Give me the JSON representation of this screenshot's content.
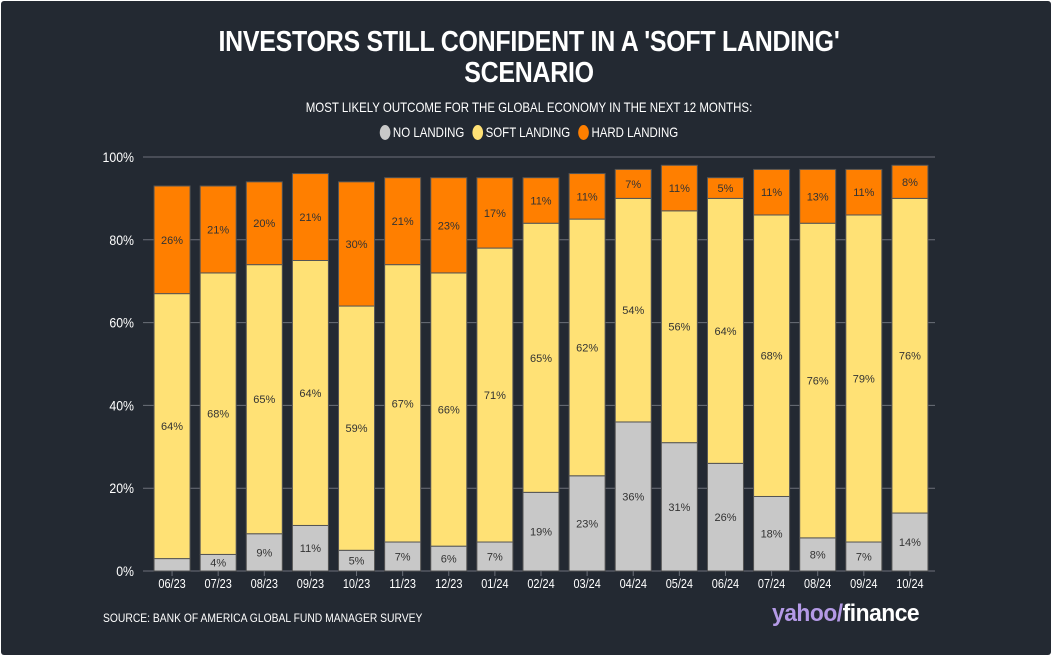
{
  "title_line1": "INVESTORS STILL CONFIDENT IN A 'SOFT LANDING'",
  "title_line2": "SCENARIO",
  "subtitle": "MOST LIKELY OUTCOME FOR THE GLOBAL ECONOMY IN THE NEXT 12 MONTHS:",
  "source": "SOURCE: BANK OF AMERICA GLOBAL FUND MANAGER SURVEY",
  "logo": {
    "part1": "yahoo",
    "part2": "/",
    "part3": "finance"
  },
  "colors": {
    "no_landing": "#c8c8c8",
    "soft_landing": "#ffe175",
    "hard_landing": "#ff7f00",
    "background": "#232932"
  },
  "chart_data": {
    "type": "bar",
    "stacked": true,
    "title": "INVESTORS STILL CONFIDENT IN A 'SOFT LANDING' SCENARIO",
    "subtitle": "MOST LIKELY OUTCOME FOR THE GLOBAL ECONOMY IN THE NEXT 12 MONTHS:",
    "xlabel": "",
    "ylabel": "",
    "ylim": [
      0,
      100
    ],
    "yticks": [
      "0%",
      "20%",
      "40%",
      "60%",
      "80%",
      "100%"
    ],
    "ytick_values": [
      0,
      20,
      40,
      60,
      80,
      100
    ],
    "grid": true,
    "legend": "top-center",
    "categories": [
      "06/23",
      "07/23",
      "08/23",
      "09/23",
      "10/23",
      "11/23",
      "12/23",
      "01/24",
      "02/24",
      "03/24",
      "04/24",
      "05/24",
      "06/24",
      "07/24",
      "08/24",
      "09/24",
      "10/24"
    ],
    "series": [
      {
        "name": "NO LANDING",
        "color": "#c8c8c8",
        "values": [
          3,
          4,
          9,
          11,
          5,
          7,
          6,
          7,
          19,
          23,
          36,
          31,
          26,
          18,
          8,
          7,
          14
        ],
        "labels": [
          "",
          "4%",
          "9%",
          "11%",
          "5%",
          "7%",
          "6%",
          "7%",
          "19%",
          "23%",
          "36%",
          "31%",
          "26%",
          "18%",
          "8%",
          "7%",
          "14%"
        ]
      },
      {
        "name": "SOFT LANDING",
        "color": "#ffe175",
        "values": [
          64,
          68,
          65,
          64,
          59,
          67,
          66,
          71,
          65,
          62,
          54,
          56,
          64,
          68,
          76,
          79,
          76
        ],
        "labels": [
          "64%",
          "68%",
          "65%",
          "64%",
          "59%",
          "67%",
          "66%",
          "71%",
          "65%",
          "62%",
          "54%",
          "56%",
          "64%",
          "68%",
          "76%",
          "79%",
          "76%"
        ]
      },
      {
        "name": "HARD LANDING",
        "color": "#ff7f00",
        "values": [
          26,
          21,
          20,
          21,
          30,
          21,
          23,
          17,
          11,
          11,
          7,
          11,
          5,
          11,
          13,
          11,
          8
        ],
        "labels": [
          "26%",
          "21%",
          "20%",
          "21%",
          "30%",
          "21%",
          "23%",
          "17%",
          "11%",
          "11%",
          "7%",
          "11%",
          "5%",
          "11%",
          "13%",
          "11%",
          "8%"
        ]
      }
    ]
  }
}
